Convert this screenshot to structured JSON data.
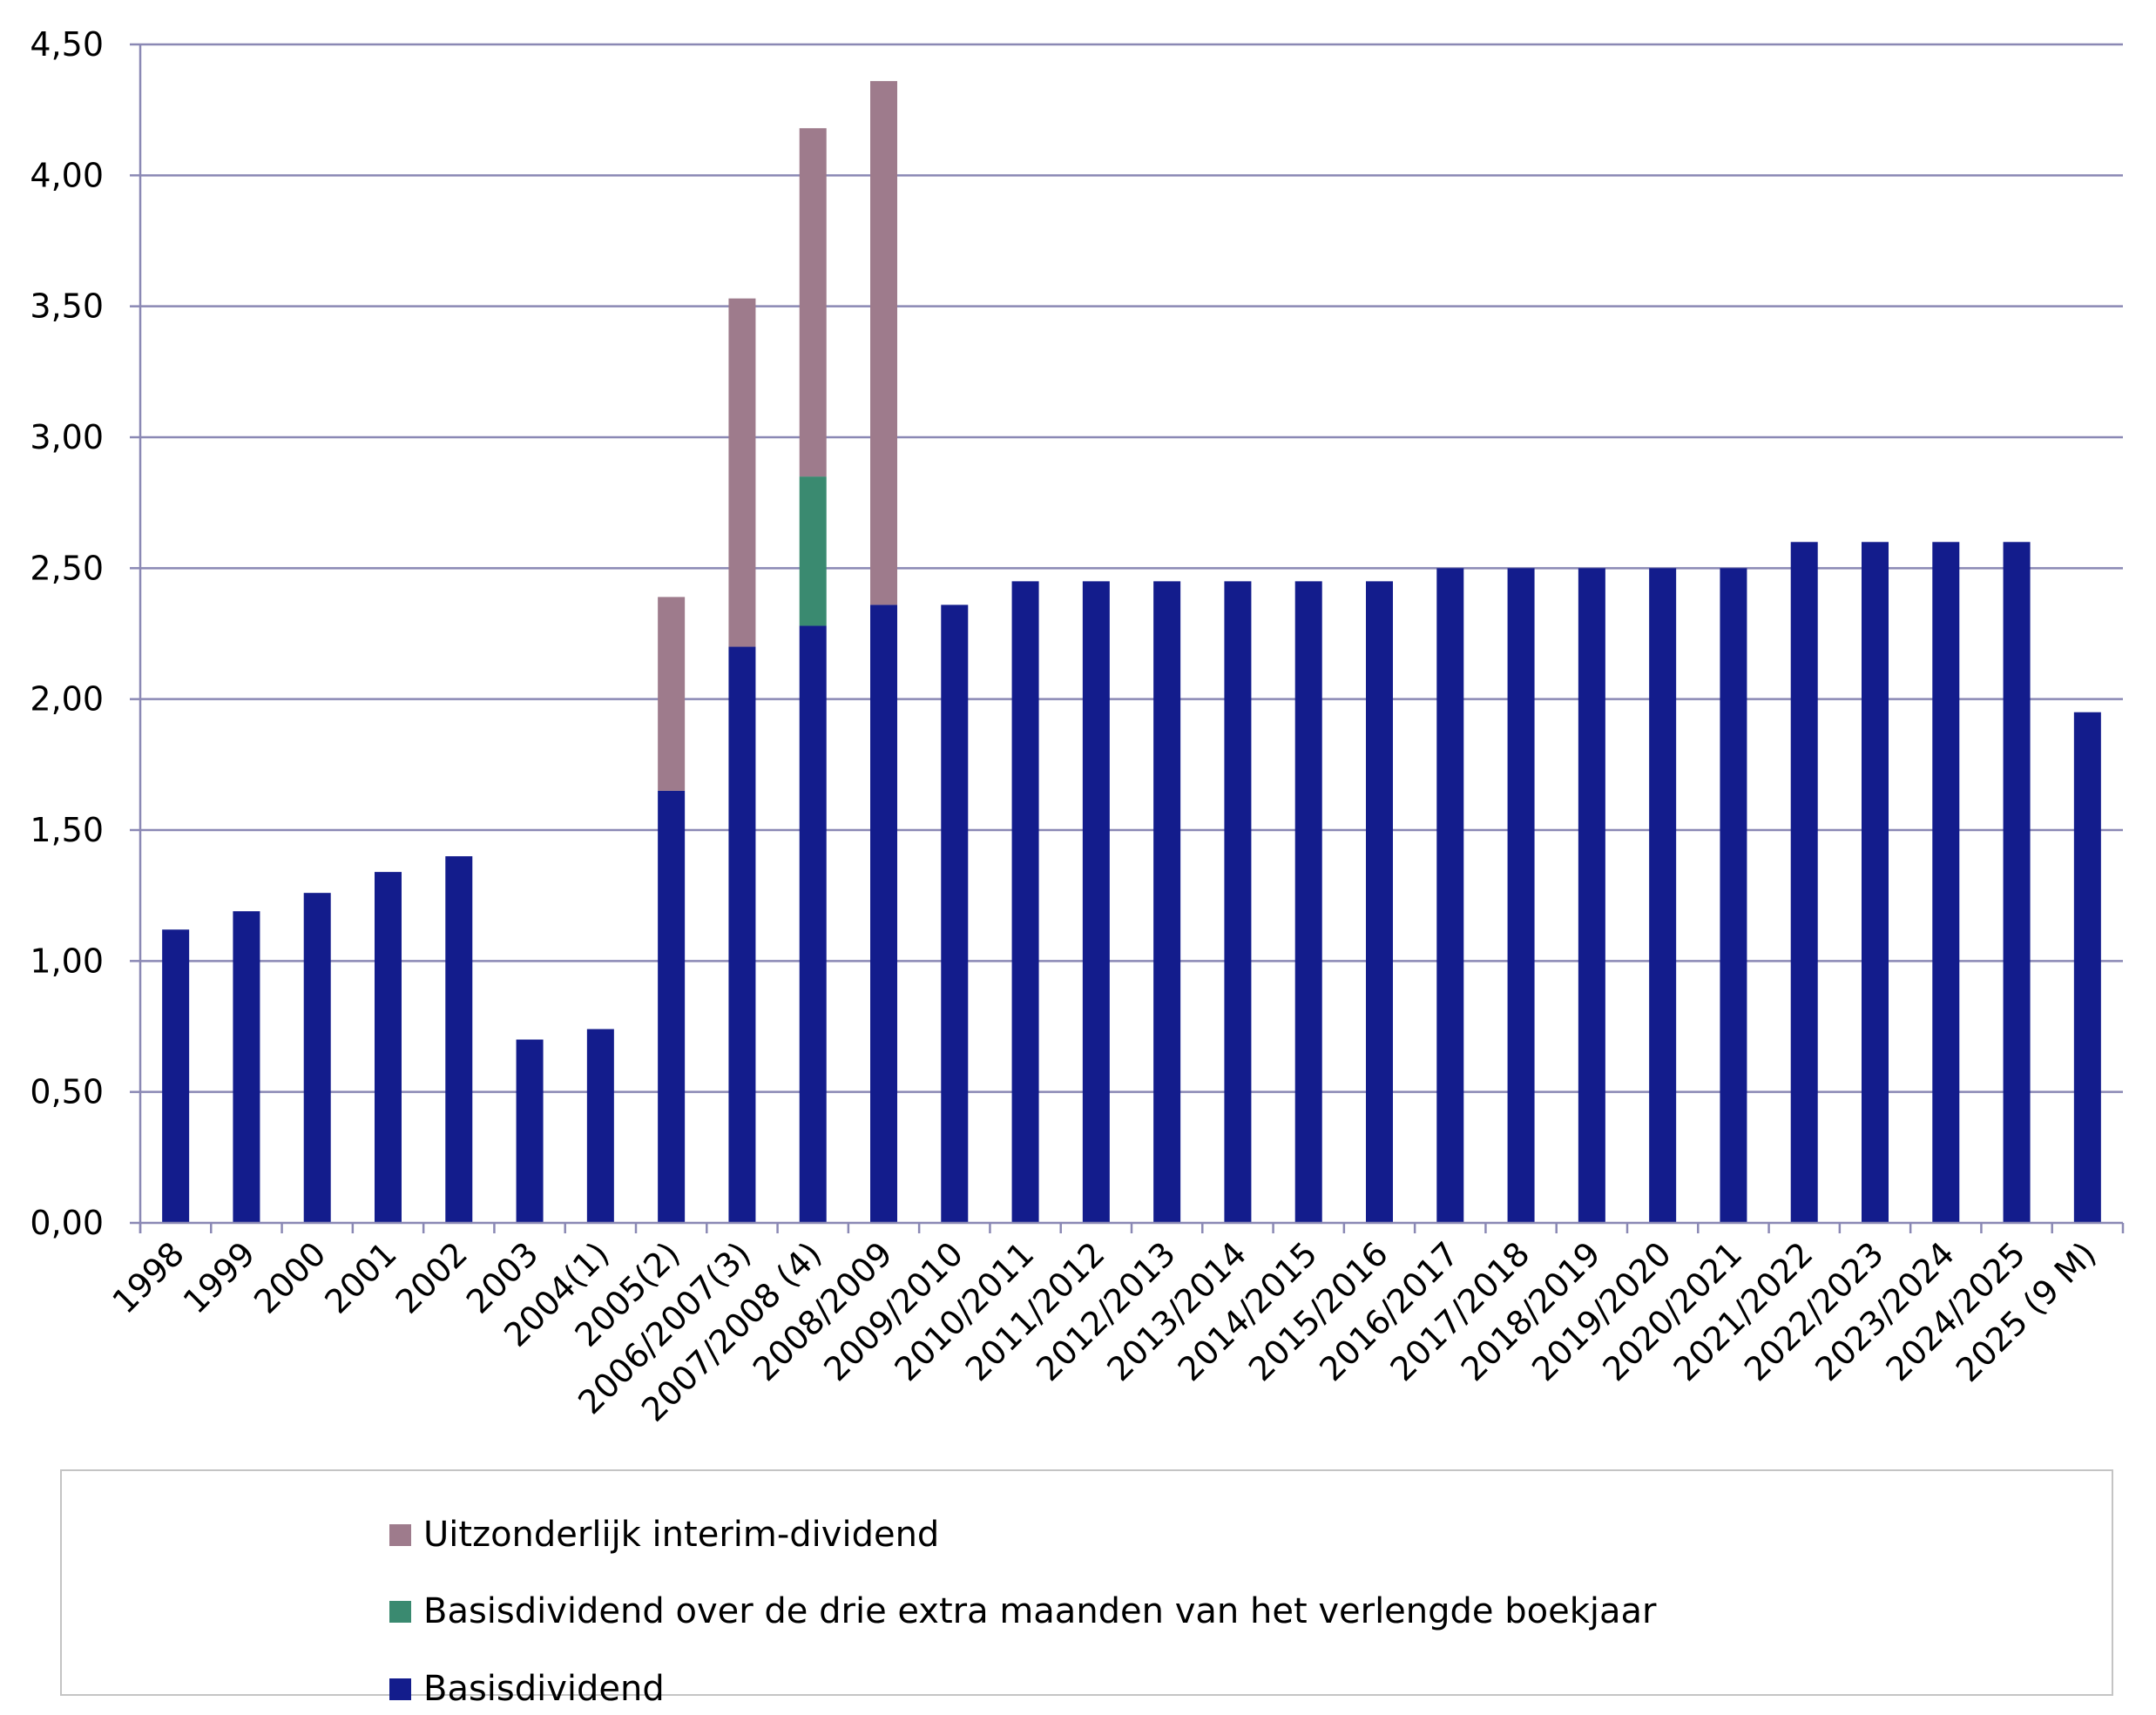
{
  "chart_data": {
    "type": "bar",
    "stacked": true,
    "categories": [
      "1998",
      "1999",
      "2000",
      "2001",
      "2002",
      "2003",
      "2004(1)",
      "2005(2)",
      "2006/2007(3)",
      "2007/2008 (4)",
      "2008/2009",
      "2009/2010",
      "2010/2011",
      "2011/2012",
      "2012/2013",
      "2013/2014",
      "2014/2015",
      "2015/2016",
      "2016/2017",
      "2017/2018",
      "2018/2019",
      "2019/2020",
      "2020/2021",
      "2021/2022",
      "2022/2023",
      "2023/2024",
      "2024/2025",
      "2025 (9 M)"
    ],
    "series": [
      {
        "name": "Basisdividend",
        "color": "#131c8c",
        "values": [
          1.12,
          1.19,
          1.26,
          1.34,
          1.4,
          0.7,
          0.74,
          1.65,
          2.2,
          2.28,
          2.36,
          2.36,
          2.45,
          2.45,
          2.45,
          2.45,
          2.45,
          2.45,
          2.5,
          2.5,
          2.5,
          2.5,
          2.5,
          2.6,
          2.6,
          2.6,
          2.6,
          1.95
        ]
      },
      {
        "name": "Basisdividend over de drie extra maanden van het verlengde boekjaar",
        "color": "#3a8a70",
        "values": [
          0,
          0,
          0,
          0,
          0,
          0,
          0,
          0,
          0,
          0.57,
          0,
          0,
          0,
          0,
          0,
          0,
          0,
          0,
          0,
          0,
          0,
          0,
          0,
          0,
          0,
          0,
          0,
          0
        ]
      },
      {
        "name": "Uitzonderlijk interim-dividend",
        "color": "#9e7b8c",
        "values": [
          0,
          0,
          0,
          0,
          0,
          0,
          0,
          0.74,
          1.33,
          1.33,
          2.0,
          0,
          0,
          0,
          0,
          0,
          0,
          0,
          0,
          0,
          0,
          0,
          0,
          0,
          0,
          0,
          0,
          0
        ]
      }
    ],
    "yticks": [
      "0,00",
      "0,50",
      "1,00",
      "1,50",
      "2,00",
      "2,50",
      "3,00",
      "3,50",
      "4,00",
      "4,50"
    ],
    "ylim": [
      0,
      4.5
    ],
    "grid": true,
    "legend_position": "bottom",
    "legend_order": [
      "Uitzonderlijk interim-dividend",
      "Basisdividend over de drie extra maanden van het verlengde boekjaar",
      "Basisdividend"
    ]
  }
}
